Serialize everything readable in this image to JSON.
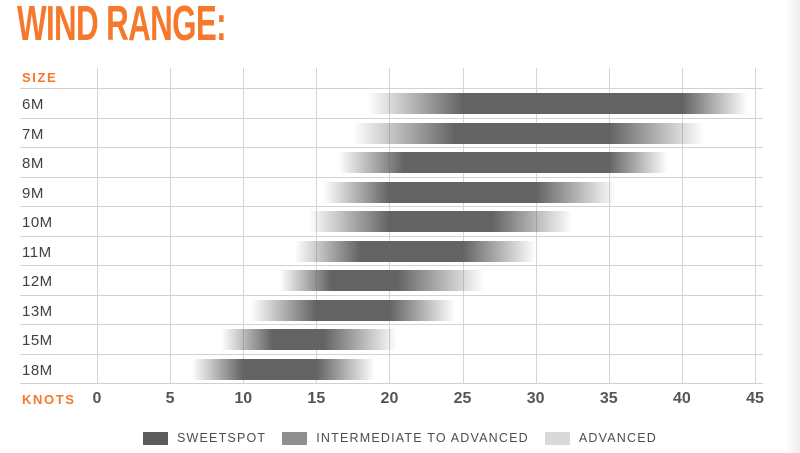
{
  "page": {
    "title": "WIND RANGE:"
  },
  "axis": {
    "size_label": "SIZE",
    "knots_label": "KNOTS",
    "tick_values": [
      0,
      5,
      10,
      15,
      20,
      25,
      30,
      35,
      40,
      45
    ],
    "x_min": 0,
    "x_max": 45
  },
  "legend": {
    "items": [
      {
        "name": "sweetspot",
        "label": "SWEETSPOT",
        "color": "#5c5c5c"
      },
      {
        "name": "intermediate-to-advanced",
        "label": "INTERMEDIATE TO ADVANCED",
        "color": "#8f8f8f"
      },
      {
        "name": "advanced",
        "label": "ADVANCED",
        "color": "#d9d9d9"
      }
    ]
  },
  "colors": {
    "accent_orange": "#F5782C",
    "bar_dark": "#636363",
    "gridline": "#d5d5d5",
    "tick_text": "#54565a",
    "row_label_text": "#414042"
  },
  "chart_data": {
    "type": "bar",
    "subtype": "horizontal-gradient-range-bars",
    "title": "WIND RANGE:",
    "xlabel": "KNOTS",
    "ylabel": "SIZE",
    "xlim": [
      0,
      45
    ],
    "x_ticks": [
      0,
      5,
      10,
      15,
      20,
      25,
      30,
      35,
      40,
      45
    ],
    "grid": true,
    "legend_position": "bottom",
    "legend_entries": [
      "SWEETSPOT",
      "INTERMEDIATE TO ADVANCED",
      "ADVANCED"
    ],
    "categories": [
      "6M",
      "7M",
      "8M",
      "9M",
      "10M",
      "11M",
      "12M",
      "13M",
      "15M",
      "18M"
    ],
    "series": [
      {
        "size": "6M",
        "range_knots": [
          18.5,
          44.5
        ],
        "sweetspot_knots": [
          25.0,
          40.0
        ]
      },
      {
        "size": "7M",
        "range_knots": [
          17.5,
          41.5
        ],
        "sweetspot_knots": [
          24.5,
          35.0
        ]
      },
      {
        "size": "8M",
        "range_knots": [
          16.5,
          39.0
        ],
        "sweetspot_knots": [
          21.0,
          35.0
        ]
      },
      {
        "size": "9M",
        "range_knots": [
          15.5,
          35.5
        ],
        "sweetspot_knots": [
          20.0,
          30.0
        ]
      },
      {
        "size": "10M",
        "range_knots": [
          14.5,
          32.5
        ],
        "sweetspot_knots": [
          20.0,
          27.0
        ]
      },
      {
        "size": "11M",
        "range_knots": [
          13.5,
          30.0
        ],
        "sweetspot_knots": [
          18.0,
          25.0
        ]
      },
      {
        "size": "12M",
        "range_knots": [
          12.5,
          26.5
        ],
        "sweetspot_knots": [
          16.0,
          20.5
        ]
      },
      {
        "size": "13M",
        "range_knots": [
          10.5,
          24.5
        ],
        "sweetspot_knots": [
          15.0,
          20.0
        ]
      },
      {
        "size": "15M",
        "range_knots": [
          8.5,
          20.5
        ],
        "sweetspot_knots": [
          12.0,
          15.5
        ]
      },
      {
        "size": "18M",
        "range_knots": [
          6.5,
          19.0
        ],
        "sweetspot_knots": [
          10.0,
          15.0
        ]
      }
    ]
  }
}
